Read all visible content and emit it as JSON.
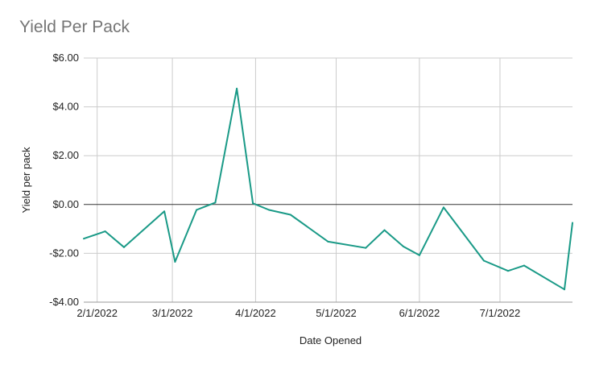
{
  "chart_data": {
    "type": "line",
    "title": "Yield Per Pack",
    "xlabel": "Date Opened",
    "ylabel": "Yield per pack",
    "ylim": [
      -4,
      6
    ],
    "xlim": [
      "2022-01-27",
      "2022-07-28"
    ],
    "y_ticks": [
      {
        "value": 6,
        "label": "$6.00"
      },
      {
        "value": 4,
        "label": "$4.00"
      },
      {
        "value": 2,
        "label": "$2.00"
      },
      {
        "value": 0,
        "label": "$0.00"
      },
      {
        "value": -2,
        "label": "-$2.00"
      },
      {
        "value": -4,
        "label": "-$4.00"
      }
    ],
    "x_ticks": [
      {
        "value": "2022-02-01",
        "label": "2/1/2022"
      },
      {
        "value": "2022-03-01",
        "label": "3/1/2022"
      },
      {
        "value": "2022-04-01",
        "label": "4/1/2022"
      },
      {
        "value": "2022-05-01",
        "label": "5/1/2022"
      },
      {
        "value": "2022-06-01",
        "label": "6/1/2022"
      },
      {
        "value": "2022-07-01",
        "label": "7/1/2022"
      }
    ],
    "grid": true,
    "line_color": "#1a9a87",
    "series": [
      {
        "x": [
          "2022-01-27",
          "2022-02-04",
          "2022-02-11",
          "2022-02-26",
          "2022-03-02",
          "2022-03-10",
          "2022-03-17",
          "2022-03-25",
          "2022-03-31",
          "2022-04-06",
          "2022-04-14",
          "2022-04-28",
          "2022-05-12",
          "2022-05-19",
          "2022-05-26",
          "2022-06-01",
          "2022-06-10",
          "2022-06-25",
          "2022-07-04",
          "2022-07-10",
          "2022-07-25",
          "2022-07-28"
        ],
        "y": [
          -1.4,
          -1.1,
          -1.75,
          -0.28,
          -2.35,
          -0.22,
          0.08,
          4.75,
          0.05,
          -0.22,
          -0.42,
          -1.52,
          -1.78,
          -1.05,
          -1.72,
          -2.08,
          -0.12,
          -2.3,
          -2.72,
          -2.5,
          -3.48,
          -0.75
        ]
      }
    ]
  }
}
